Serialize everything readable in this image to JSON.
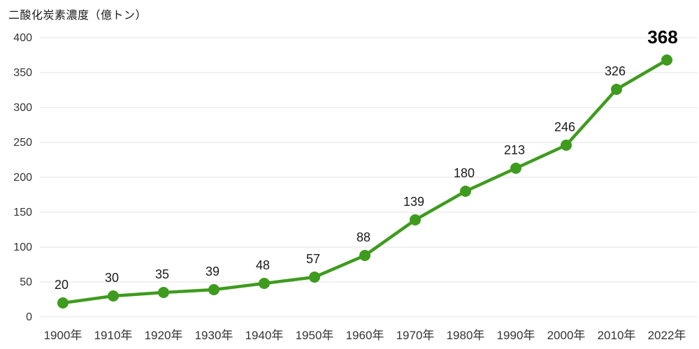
{
  "title": "二酸化炭素濃度（億トン）",
  "chart_data": {
    "type": "line",
    "title": "二酸化炭素濃度（億トン）",
    "xlabel": "",
    "ylabel": "二酸化炭素濃度（億トン）",
    "categories": [
      "1900年",
      "1910年",
      "1920年",
      "1930年",
      "1940年",
      "1950年",
      "1960年",
      "1970年",
      "1980年",
      "1990年",
      "2000年",
      "2010年",
      "2022年"
    ],
    "values": [
      20,
      30,
      35,
      39,
      48,
      57,
      88,
      139,
      180,
      213,
      246,
      326,
      368
    ],
    "point_labels": [
      "20",
      "30",
      "35",
      "39",
      "48",
      "57",
      "88",
      "139",
      "180",
      "213",
      "246",
      "326",
      "368"
    ],
    "ylim": [
      0,
      400
    ],
    "yticks": [
      0,
      50,
      100,
      150,
      200,
      250,
      300,
      350,
      400
    ],
    "grid": true,
    "legend_position": "none",
    "emphasize_last_label": true,
    "colors": {
      "line": "#3f9b1e",
      "marker": "#3f9b1e",
      "gridline": "#e3e3e3",
      "tick_text": "#333333",
      "label_text": "#1a1a1a",
      "emphasized_label_text": "#000000",
      "background": "#ffffff"
    }
  }
}
